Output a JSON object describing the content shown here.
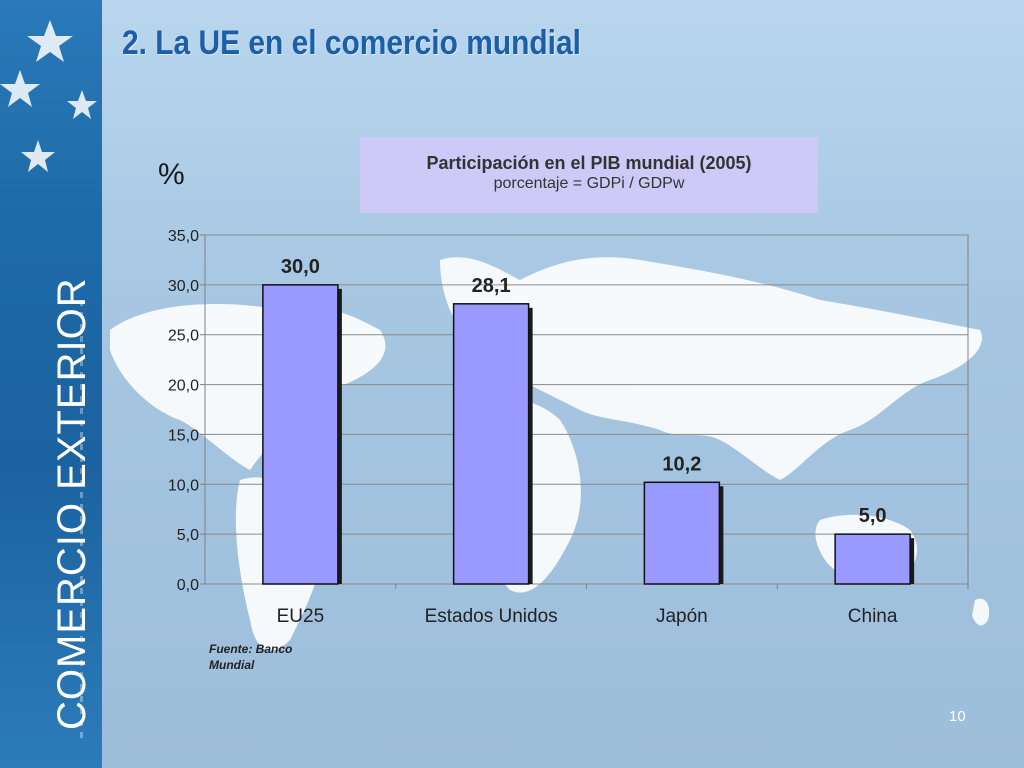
{
  "slide": {
    "title": "2. La UE en el comercio mundial",
    "sidebar_title": "COMERCIO EXTERIOR",
    "unit_symbol": "%",
    "source": "Fuente: Banco Mundial",
    "page_number": "10"
  },
  "colors": {
    "bar_fill": "#9999ff",
    "title_text": "#1c5fa8",
    "chart_box": "#cfc9f7"
  },
  "chart_data": {
    "type": "bar",
    "title": "Participación en el PIB mundial (2005)",
    "subtitle": "porcentaje = GDPi / GDPw",
    "categories": [
      "EU25",
      "Estados Unidos",
      "Japón",
      "China"
    ],
    "values": [
      30.0,
      28.1,
      10.2,
      5.0
    ],
    "value_labels": [
      "30,0",
      "28,1",
      "10,2",
      "5,0"
    ],
    "ylim": [
      0,
      35
    ],
    "yticks": [
      "0,0",
      "5,0",
      "10,0",
      "15,0",
      "20,0",
      "25,0",
      "30,0",
      "35,0"
    ],
    "grid": true
  }
}
